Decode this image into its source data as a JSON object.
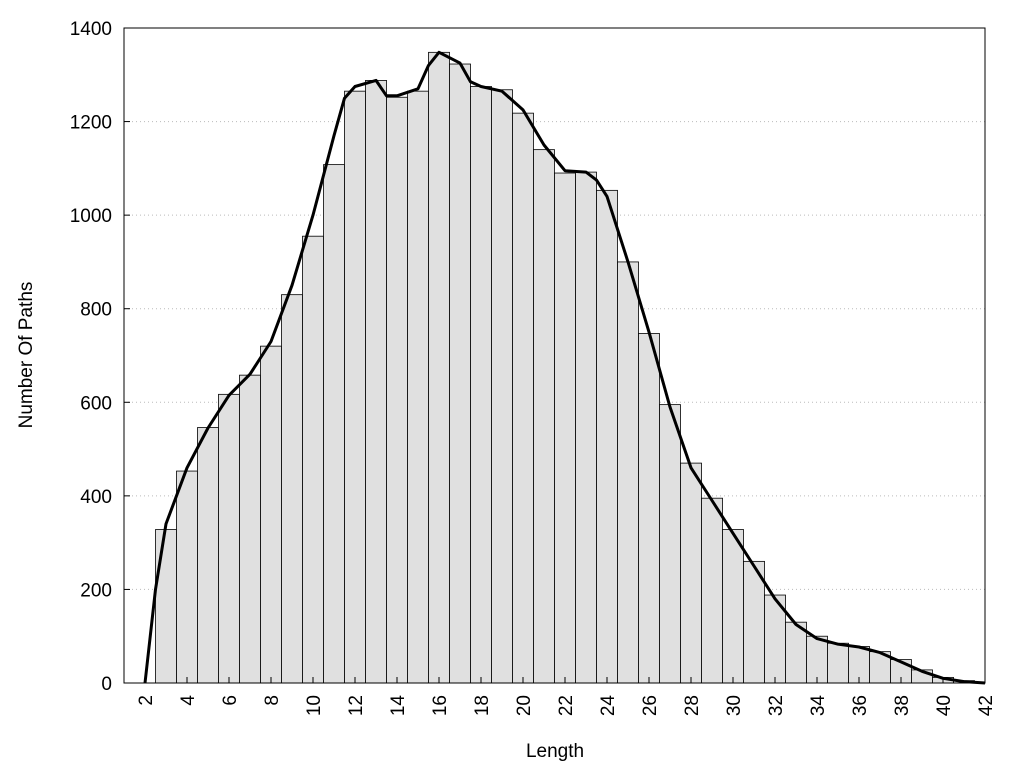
{
  "chart_data": {
    "type": "histogram",
    "xlabel": "Length",
    "ylabel": "Number Of Paths",
    "bins": [
      2.5,
      3.5,
      4.5,
      5.5,
      6.5,
      7.5,
      8.5,
      9.5,
      10.5,
      11.5,
      12.5,
      13.5,
      14.5,
      15.5,
      16.5,
      17.5,
      18.5,
      19.5,
      20.5,
      21.5,
      22.5,
      23.5,
      24.5,
      25.5,
      26.5,
      27.5,
      28.5,
      29.5,
      30.5,
      31.5,
      32.5,
      33.5,
      34.5,
      35.5,
      36.5,
      37.5,
      38.5,
      39.5,
      40.5,
      41.5
    ],
    "counts": [
      328,
      453,
      546,
      617,
      658,
      720,
      830,
      955,
      1108,
      1265,
      1288,
      1252,
      1265,
      1348,
      1323,
      1275,
      1268,
      1218,
      1140,
      1090,
      1092,
      1053,
      900,
      747,
      595,
      470,
      395,
      328,
      260,
      188,
      130,
      100,
      85,
      78,
      67,
      50,
      28,
      12,
      5
    ],
    "bar_color": "#e0e0e0",
    "line": {
      "color": "#000000",
      "x": [
        2,
        2.5,
        3,
        4,
        5,
        6,
        7,
        8,
        9,
        10,
        11,
        11.5,
        12,
        13,
        13.5,
        14,
        15,
        15.5,
        16,
        17,
        17.5,
        18,
        19,
        20,
        21,
        22,
        23,
        23.5,
        24,
        25,
        26,
        27,
        28,
        29,
        30,
        31,
        32,
        33,
        34,
        35,
        36,
        37,
        38,
        39,
        40,
        41,
        42
      ],
      "values": [
        0,
        200,
        340,
        460,
        545,
        615,
        660,
        730,
        850,
        1000,
        1170,
        1250,
        1275,
        1288,
        1255,
        1255,
        1270,
        1320,
        1348,
        1325,
        1285,
        1275,
        1265,
        1225,
        1150,
        1095,
        1092,
        1075,
        1040,
        900,
        750,
        590,
        460,
        390,
        320,
        250,
        180,
        125,
        95,
        83,
        77,
        65,
        45,
        25,
        10,
        3,
        0
      ]
    },
    "xlim": [
      1,
      42
    ],
    "ylim": [
      0,
      1400
    ],
    "xticks": [
      2,
      4,
      6,
      8,
      10,
      12,
      14,
      16,
      18,
      20,
      22,
      24,
      26,
      28,
      30,
      32,
      34,
      36,
      38,
      40,
      42
    ],
    "yticks": [
      0,
      200,
      400,
      600,
      800,
      1000,
      1200,
      1400
    ],
    "grid": true
  }
}
